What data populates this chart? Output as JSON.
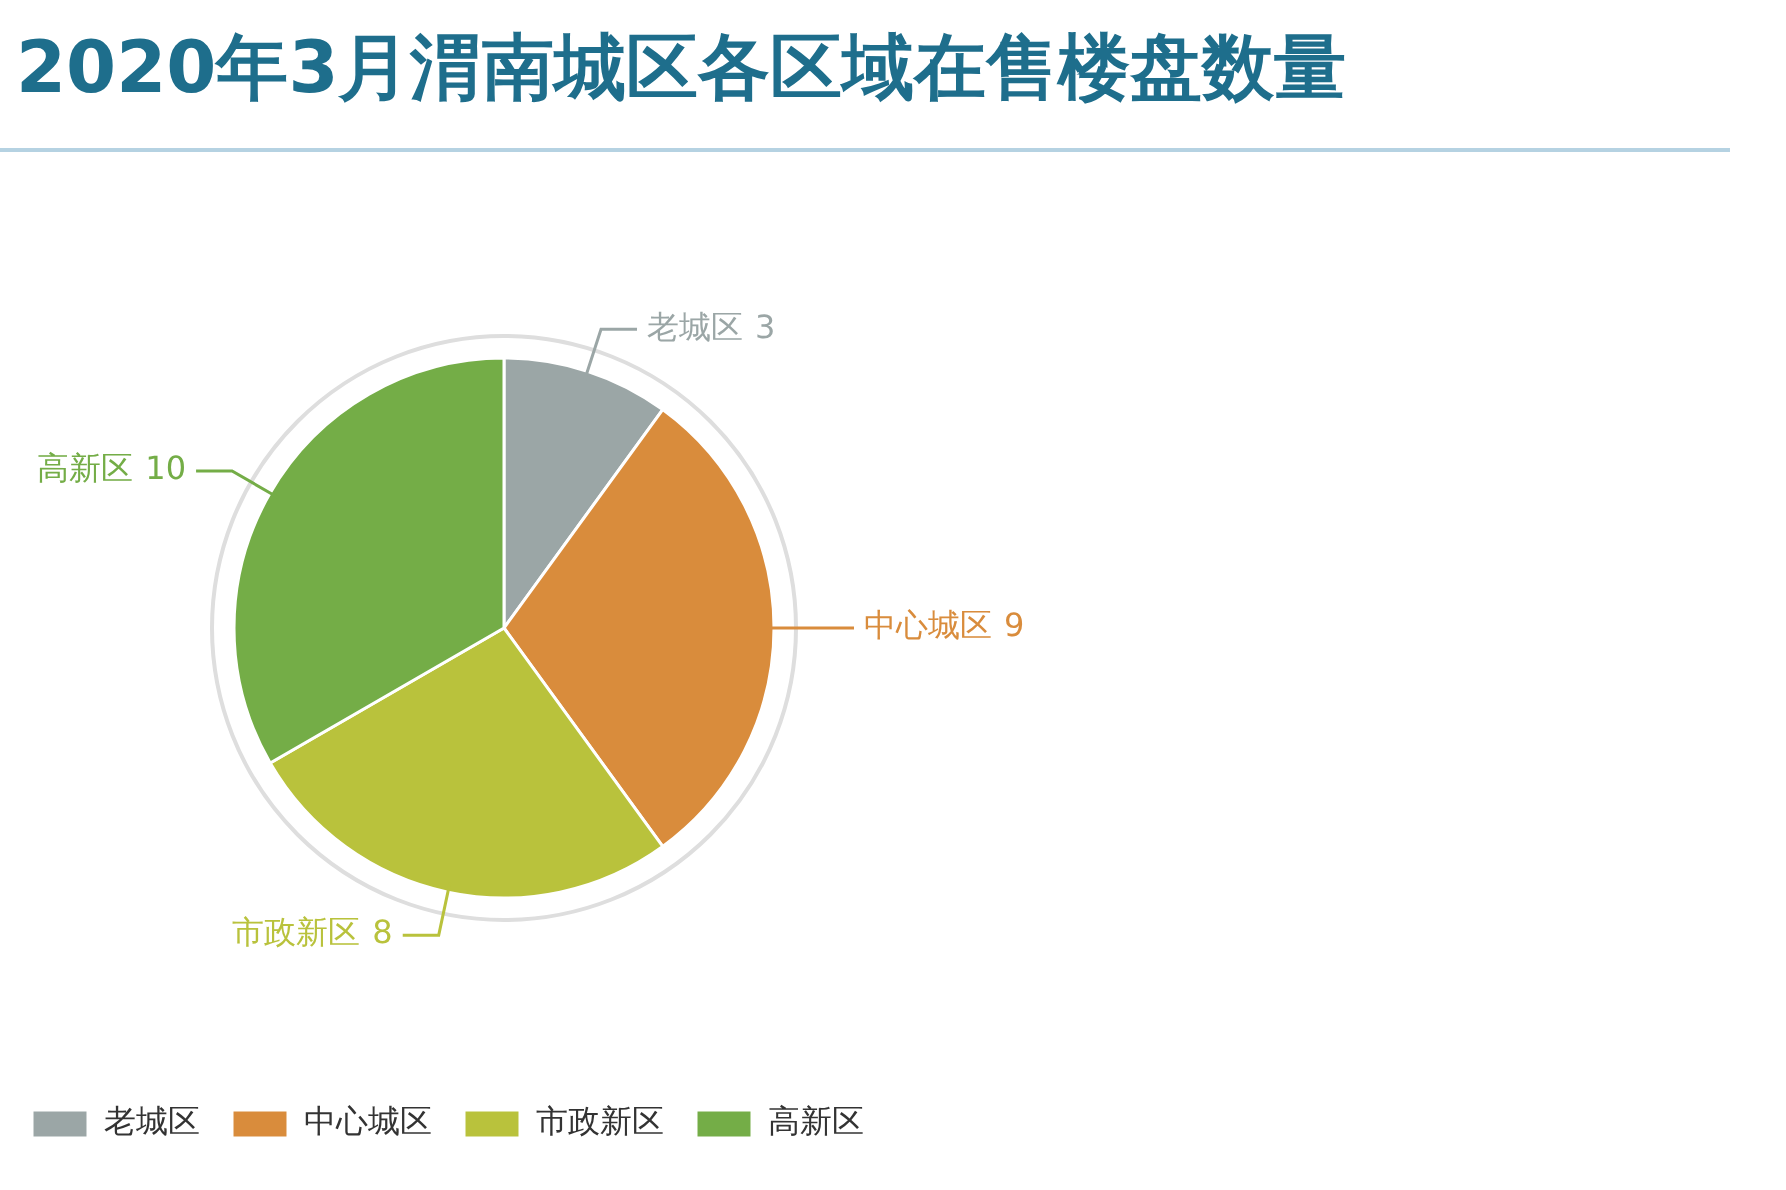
{
  "chart_data": {
    "type": "pie",
    "title": "2020年3月渭南城区各区域在售楼盘数量",
    "categories": [
      "老城区",
      "中心城区",
      "市政新区",
      "高新区"
    ],
    "values": [
      3,
      9,
      8,
      10
    ],
    "colors": [
      "#9ba6a6",
      "#d98c3c",
      "#b9c23c",
      "#74ad47"
    ],
    "data_labels": true,
    "legend": "bottom left"
  }
}
